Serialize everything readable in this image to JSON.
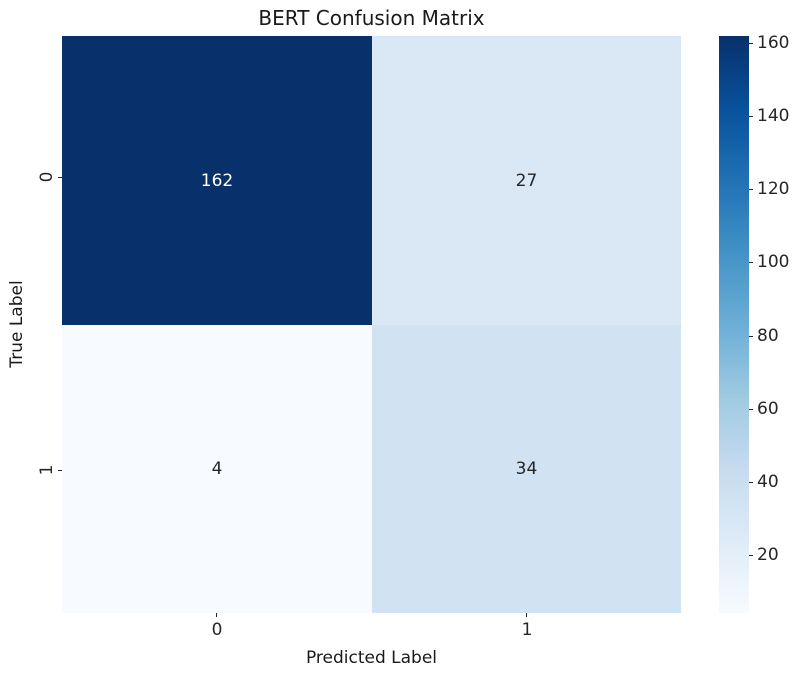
{
  "chart_data": {
    "type": "heatmap",
    "title": "BERT Confusion Matrix",
    "xlabel": "Predicted Label",
    "ylabel": "True Label",
    "x_tick_labels": [
      "0",
      "1"
    ],
    "y_tick_labels": [
      "0",
      "1"
    ],
    "matrix": [
      [
        162,
        27
      ],
      [
        4,
        34
      ]
    ],
    "vmin": 4,
    "vmax": 162,
    "colormap": "Blues",
    "colorbar_ticks": [
      160,
      140,
      120,
      100,
      80,
      60,
      40,
      20
    ],
    "legend_position": "right-colorbar",
    "grid": false
  },
  "colors": {
    "cells": [
      [
        "#08306b",
        "#dae8f6"
      ],
      [
        "#f7fbff",
        "#d1e2f3"
      ]
    ],
    "cell_text": [
      [
        "#ffffff",
        "#262626"
      ],
      [
        "#262626",
        "#262626"
      ]
    ],
    "colorbar_stops": [
      "#f7fbff",
      "#deebf7",
      "#c6dbef",
      "#9ecae1",
      "#6baed6",
      "#4292c6",
      "#2171b5",
      "#08519c",
      "#08306b"
    ],
    "tick_color": "#262626",
    "text_color": "#1a1a1a",
    "background": "#ffffff"
  }
}
